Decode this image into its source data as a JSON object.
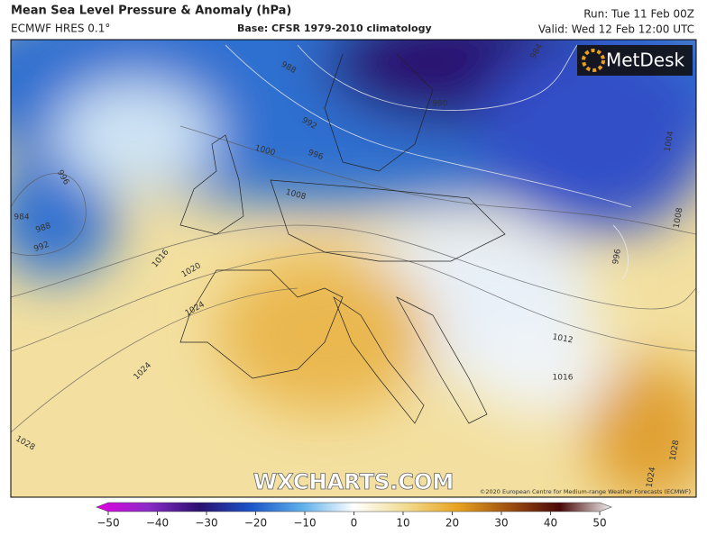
{
  "header": {
    "title": "Mean Sea Level Pressure & Anomaly (hPa)",
    "model": "ECMWF HRES 0.1°",
    "base": "Base: CFSR 1979-2010 climatology",
    "run": "Run: Tue 11 Feb 00Z",
    "valid": "Valid: Wed 12 Feb 12:00 UTC"
  },
  "logo": "MetDesk",
  "watermark": "WXCHARTS.COM",
  "copyright": "©2020 European Centre for Medium-range Weather Forecasts (ECMWF)",
  "isobars": [
    984,
    988,
    992,
    996,
    1016,
    1020,
    1024,
    1024,
    1028,
    988,
    992,
    996,
    1000,
    1008,
    990,
    984,
    1004,
    1008,
    996,
    1012,
    1016,
    1028,
    1024
  ],
  "colorbar": {
    "ticks": [
      {
        "value": -50,
        "label": "−50"
      },
      {
        "value": -40,
        "label": "−40"
      },
      {
        "value": -30,
        "label": "−30"
      },
      {
        "value": -20,
        "label": "−20"
      },
      {
        "value": -10,
        "label": "−10"
      },
      0,
      10,
      20,
      30,
      40,
      50
    ]
  }
}
